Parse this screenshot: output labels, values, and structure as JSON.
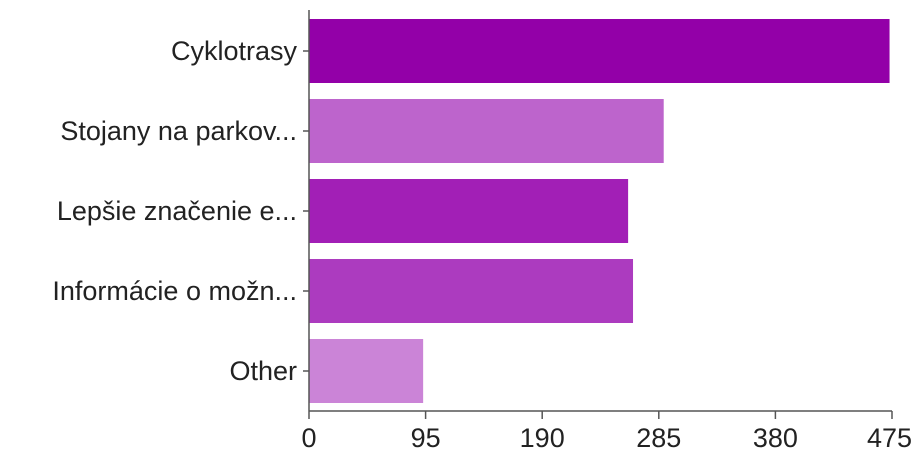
{
  "chart_data": {
    "type": "bar",
    "orientation": "horizontal",
    "title": "",
    "xlabel": "",
    "ylabel": "",
    "categories": [
      "Cyklotrasy",
      "Stojany na parkov...",
      "Lepšie značenie e...",
      "Informácie o možn...",
      "Other"
    ],
    "values": [
      473,
      289,
      260,
      264,
      93
    ],
    "colors": [
      "#9300a8",
      "#bd64cc",
      "#a21fb6",
      "#ac3bbf",
      "#cb84d7"
    ],
    "xlim": [
      0,
      475
    ],
    "xticks": [
      0,
      95,
      190,
      285,
      380,
      475
    ],
    "grid": false,
    "legend": "none"
  }
}
